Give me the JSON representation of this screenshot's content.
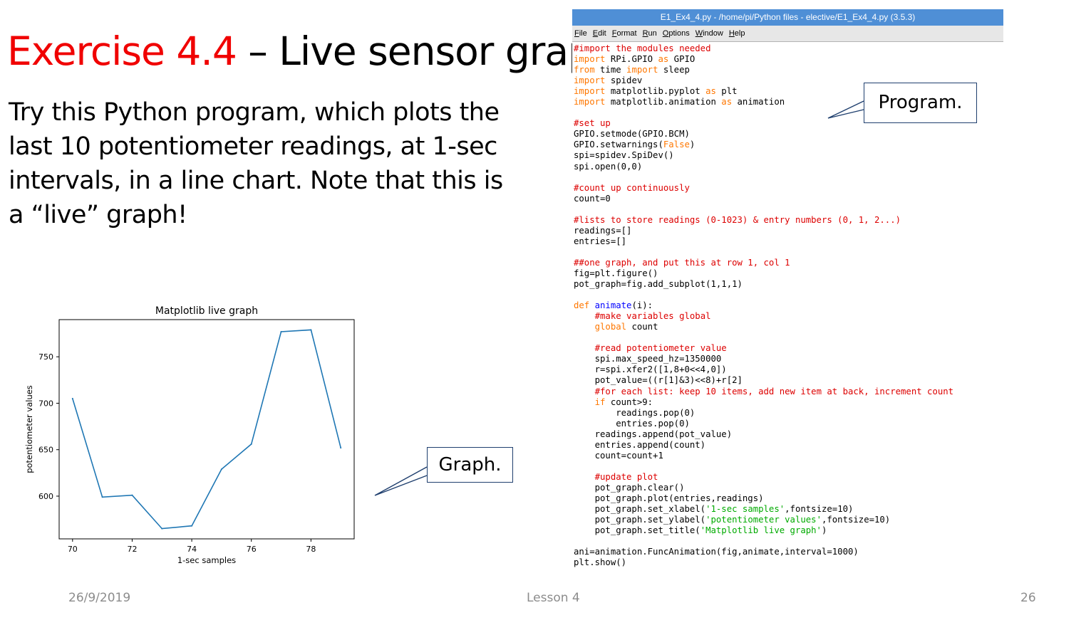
{
  "slide": {
    "title_red": "Exercise 4.4",
    "title_rest": " – Live sensor graph",
    "body": "Try this Python program, which plots the last 10 potentiometer readings, at 1-sec intervals, in a line chart. Note that this is a “live” graph!",
    "callout_program": "Program.",
    "callout_graph": "Graph.",
    "footer_date": "26/9/2019",
    "footer_lesson": "Lesson 4",
    "footer_page": "26"
  },
  "ide": {
    "title": "E1_Ex4_4.py - /home/pi/Python files - elective/E1_Ex4_4.py (3.5.3)",
    "menu": [
      "File",
      "Edit",
      "Format",
      "Run",
      "Options",
      "Window",
      "Help"
    ],
    "code_lines": [
      [
        {
          "t": "#import the modules needed",
          "c": "cm"
        }
      ],
      [
        {
          "t": "import",
          "c": "kw"
        },
        {
          "t": " RPi.GPIO ",
          "c": "tx"
        },
        {
          "t": "as",
          "c": "kw"
        },
        {
          "t": " GPIO",
          "c": "tx"
        }
      ],
      [
        {
          "t": "from",
          "c": "kw"
        },
        {
          "t": " time ",
          "c": "tx"
        },
        {
          "t": "import",
          "c": "kw"
        },
        {
          "t": " sleep",
          "c": "tx"
        }
      ],
      [
        {
          "t": "import",
          "c": "kw"
        },
        {
          "t": " spidev",
          "c": "tx"
        }
      ],
      [
        {
          "t": "import",
          "c": "kw"
        },
        {
          "t": " matplotlib.pyplot ",
          "c": "tx"
        },
        {
          "t": "as",
          "c": "kw"
        },
        {
          "t": " plt",
          "c": "tx"
        }
      ],
      [
        {
          "t": "import",
          "c": "kw"
        },
        {
          "t": " matplotlib.animation ",
          "c": "tx"
        },
        {
          "t": "as",
          "c": "kw"
        },
        {
          "t": " animation",
          "c": "tx"
        }
      ],
      [],
      [
        {
          "t": "#set up",
          "c": "cm"
        }
      ],
      [
        {
          "t": "GPIO.setmode(GPIO.BCM)",
          "c": "tx"
        }
      ],
      [
        {
          "t": "GPIO.setwarnings(",
          "c": "tx"
        },
        {
          "t": "False",
          "c": "kw"
        },
        {
          "t": ")",
          "c": "tx"
        }
      ],
      [
        {
          "t": "spi=spidev.SpiDev()",
          "c": "tx"
        }
      ],
      [
        {
          "t": "spi.open(0,0)",
          "c": "tx"
        }
      ],
      [],
      [
        {
          "t": "#count up continuously",
          "c": "cm"
        }
      ],
      [
        {
          "t": "count=0",
          "c": "tx"
        }
      ],
      [],
      [
        {
          "t": "#lists to store readings (0-1023) & entry numbers (0, 1, 2...)",
          "c": "cm"
        }
      ],
      [
        {
          "t": "readings=[]",
          "c": "tx"
        }
      ],
      [
        {
          "t": "entries=[]",
          "c": "tx"
        }
      ],
      [],
      [
        {
          "t": "##one graph, and put this at row 1, col 1",
          "c": "cm"
        }
      ],
      [
        {
          "t": "fig=plt.figure()",
          "c": "tx"
        }
      ],
      [
        {
          "t": "pot_graph=fig.add_subplot(1,1,1)",
          "c": "tx"
        }
      ],
      [],
      [
        {
          "t": "def",
          "c": "kw"
        },
        {
          "t": " ",
          "c": "tx"
        },
        {
          "t": "animate",
          "c": "fn"
        },
        {
          "t": "(i):",
          "c": "tx"
        }
      ],
      [
        {
          "t": "    ",
          "c": "tx"
        },
        {
          "t": "#make variables global",
          "c": "cm"
        }
      ],
      [
        {
          "t": "    ",
          "c": "tx"
        },
        {
          "t": "global",
          "c": "kw"
        },
        {
          "t": " count",
          "c": "tx"
        }
      ],
      [],
      [
        {
          "t": "    ",
          "c": "tx"
        },
        {
          "t": "#read potentiometer value",
          "c": "cm"
        }
      ],
      [
        {
          "t": "    spi.max_speed_hz=1350000",
          "c": "tx"
        }
      ],
      [
        {
          "t": "    r=spi.xfer2([1,8+0<<4,0])",
          "c": "tx"
        }
      ],
      [
        {
          "t": "    pot_value=((r[1]&3)<<8)+r[2]",
          "c": "tx"
        }
      ],
      [
        {
          "t": "    ",
          "c": "tx"
        },
        {
          "t": "#for each list: keep 10 items, add new item at back, increment count",
          "c": "cm"
        }
      ],
      [
        {
          "t": "    ",
          "c": "tx"
        },
        {
          "t": "if",
          "c": "kw"
        },
        {
          "t": " count>9:",
          "c": "tx"
        }
      ],
      [
        {
          "t": "        readings.pop(0)",
          "c": "tx"
        }
      ],
      [
        {
          "t": "        entries.pop(0)",
          "c": "tx"
        }
      ],
      [
        {
          "t": "    readings.append(pot_value)",
          "c": "tx"
        }
      ],
      [
        {
          "t": "    entries.append(count)",
          "c": "tx"
        }
      ],
      [
        {
          "t": "    count=count+1",
          "c": "tx"
        }
      ],
      [],
      [
        {
          "t": "    ",
          "c": "tx"
        },
        {
          "t": "#update plot",
          "c": "cm"
        }
      ],
      [
        {
          "t": "    pot_graph.clear()",
          "c": "tx"
        }
      ],
      [
        {
          "t": "    pot_graph.plot(entries,readings)",
          "c": "tx"
        }
      ],
      [
        {
          "t": "    pot_graph.set_xlabel(",
          "c": "tx"
        },
        {
          "t": "'1-sec samples'",
          "c": "st"
        },
        {
          "t": ",fontsize=10)",
          "c": "tx"
        }
      ],
      [
        {
          "t": "    pot_graph.set_ylabel(",
          "c": "tx"
        },
        {
          "t": "'potentiometer values'",
          "c": "st"
        },
        {
          "t": ",fontsize=10)",
          "c": "tx"
        }
      ],
      [
        {
          "t": "    pot_graph.set_title(",
          "c": "tx"
        },
        {
          "t": "'Matplotlib live graph'",
          "c": "st"
        },
        {
          "t": ")",
          "c": "tx"
        }
      ],
      [],
      [
        {
          "t": "ani=animation.FuncAnimation(fig,animate,interval=1000)",
          "c": "tx"
        }
      ],
      [
        {
          "t": "plt.show()",
          "c": "tx"
        }
      ]
    ]
  },
  "chart_data": {
    "type": "line",
    "title": "Matplotlib live graph",
    "xlabel": "1-sec samples",
    "ylabel": "potentiometer values",
    "x": [
      70,
      71,
      72,
      73,
      74,
      75,
      76,
      77,
      78,
      79
    ],
    "y": [
      705,
      599,
      601,
      565,
      568,
      629,
      656,
      777,
      779,
      652
    ],
    "xlim": [
      69.55,
      79.45
    ],
    "ylim": [
      554,
      790
    ],
    "xticks": [
      70,
      72,
      74,
      76,
      78
    ],
    "yticks": [
      600,
      650,
      700,
      750
    ],
    "grid": false,
    "line_color": "#1f77b4"
  }
}
